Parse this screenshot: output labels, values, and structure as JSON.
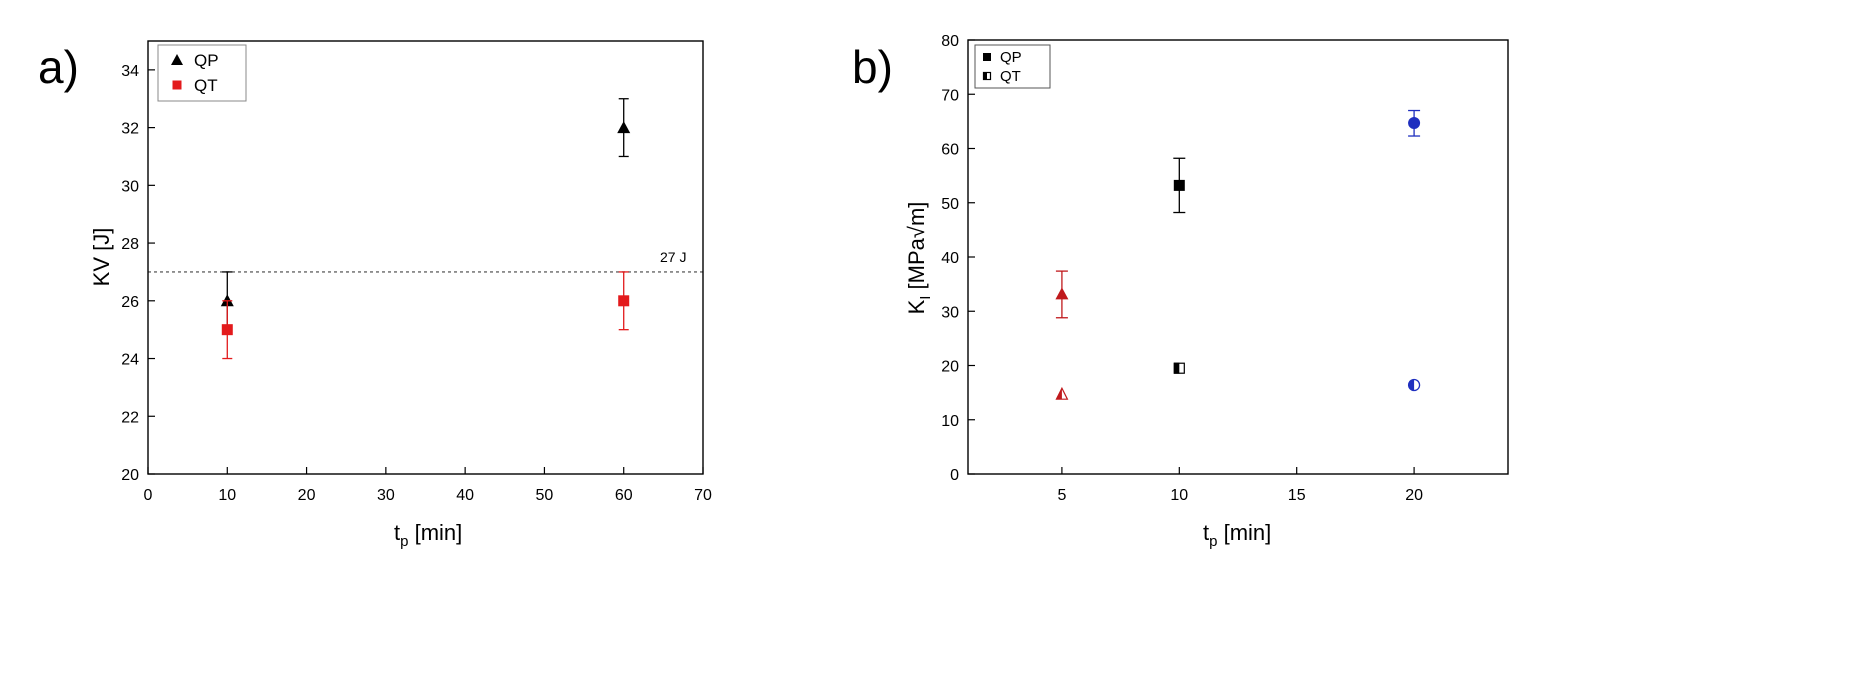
{
  "chart_data": [
    {
      "panel_label": "a)",
      "type": "scatter",
      "xlabel": "t",
      "xlabel_sub": "p",
      "xlabel_unit": " [min]",
      "ylabel": "KV [J]",
      "xlim": [
        0,
        70
      ],
      "ylim": [
        20,
        35
      ],
      "xticks": [
        0,
        10,
        20,
        30,
        40,
        50,
        60,
        70
      ],
      "yticks": [
        20,
        22,
        24,
        26,
        28,
        30,
        32,
        34
      ],
      "grid": false,
      "legend_position": "top-left",
      "reference_line": {
        "y": 27,
        "label": "27 J",
        "style": "dotted"
      },
      "series": [
        {
          "name": "QP",
          "marker": "triangle",
          "color": "#000000",
          "points": [
            {
              "x": 10,
              "y": 26,
              "err_low": 25,
              "err_high": 27
            },
            {
              "x": 60,
              "y": 32,
              "err_low": 31,
              "err_high": 33
            }
          ]
        },
        {
          "name": "QT",
          "marker": "square",
          "color": "#e31a1c",
          "points": [
            {
              "x": 10,
              "y": 25,
              "err_low": 24,
              "err_high": 26
            },
            {
              "x": 60,
              "y": 26,
              "err_low": 25,
              "err_high": 27
            }
          ]
        }
      ]
    },
    {
      "panel_label": "b)",
      "type": "scatter",
      "xlabel": "t",
      "xlabel_sub": "p",
      "xlabel_unit": " [min]",
      "ylabel": "K",
      "ylabel_sub": "I",
      "ylabel_unit": " [MPa√m]",
      "xlim": [
        1,
        24
      ],
      "ylim": [
        0,
        80
      ],
      "xticks": [
        5,
        10,
        15,
        20
      ],
      "yticks": [
        0,
        10,
        20,
        30,
        40,
        50,
        60,
        70,
        80
      ],
      "grid": false,
      "legend_position": "top-left",
      "series": [
        {
          "name": "QP",
          "legend_marker": "square",
          "legend_color": "#000000",
          "points": [
            {
              "x": 5,
              "y": 33.2,
              "err_low": 28.8,
              "err_high": 37.4,
              "marker": "triangle",
              "color": "#c0191c"
            },
            {
              "x": 10,
              "y": 53.2,
              "err_low": 48.2,
              "err_high": 58.2,
              "marker": "square",
              "color": "#000000"
            },
            {
              "x": 20,
              "y": 64.7,
              "err_low": 62.3,
              "err_high": 67.0,
              "marker": "circle",
              "color": "#1f2fbf"
            }
          ]
        },
        {
          "name": "QT",
          "legend_marker": "half-square",
          "legend_color": "#000000",
          "points": [
            {
              "x": 5,
              "y": 14.8,
              "marker": "half-triangle",
              "color": "#c0191c"
            },
            {
              "x": 10,
              "y": 19.5,
              "marker": "half-square",
              "color": "#000000"
            },
            {
              "x": 20,
              "y": 16.4,
              "marker": "half-circle",
              "color": "#1f2fbf"
            }
          ]
        }
      ]
    }
  ]
}
